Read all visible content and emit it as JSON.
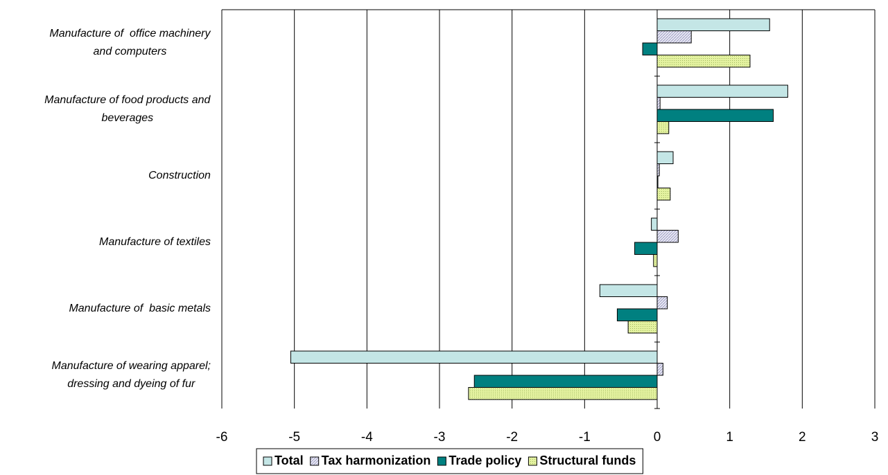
{
  "chart_data": {
    "type": "hbar",
    "categories": [
      "Manufacture of  office machinery\nand computers",
      "Manufacture of food products and\nbeverages",
      "Construction",
      "Manufacture of textiles",
      "Manufacture of  basic metals",
      "Manufacture of wearing apparel;\ndressing and dyeing of fur"
    ],
    "series": [
      {
        "name": "Total",
        "color": "#c4e6e6",
        "values": [
          1.55,
          1.8,
          0.22,
          -0.08,
          -0.79,
          -5.05
        ]
      },
      {
        "name": "Tax harmonization",
        "color": "#e8e8f4",
        "values": [
          0.47,
          0.04,
          0.03,
          0.29,
          0.14,
          0.08
        ]
      },
      {
        "name": "Trade policy",
        "color": "#008080",
        "values": [
          -0.2,
          1.6,
          0.01,
          -0.31,
          -0.55,
          -2.52
        ]
      },
      {
        "name": "Structural funds",
        "color": "#e4f2a0",
        "values": [
          1.28,
          0.16,
          0.18,
          -0.05,
          -0.4,
          -2.6
        ]
      }
    ],
    "xlim": [
      -6,
      3
    ],
    "xticks": [
      -6,
      -5,
      -4,
      -3,
      -2,
      -1,
      0,
      1,
      2,
      3
    ],
    "grid": true,
    "legend": "bottom"
  }
}
